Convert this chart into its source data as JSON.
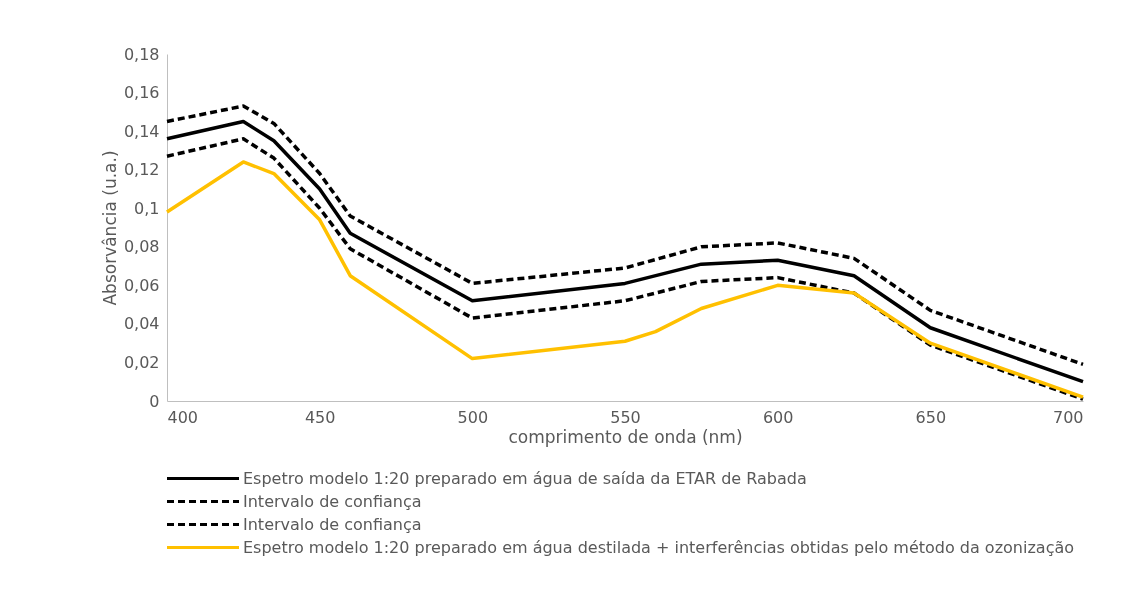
{
  "chart_data": {
    "type": "line",
    "xlabel": "comprimento de onda (nm)",
    "ylabel": "Absorvância (u.a.)",
    "xlim": [
      400,
      700
    ],
    "xticks": [
      400,
      450,
      500,
      550,
      600,
      650,
      700
    ],
    "ylim": [
      0,
      0.18
    ],
    "yticks": [
      {
        "value": 0,
        "label": "0"
      },
      {
        "value": 0.02,
        "label": "0,02"
      },
      {
        "value": 0.04,
        "label": "0,04"
      },
      {
        "value": 0.06,
        "label": "0,06"
      },
      {
        "value": 0.08,
        "label": "0,08"
      },
      {
        "value": 0.1,
        "label": "0,1"
      },
      {
        "value": 0.12,
        "label": "0,12"
      },
      {
        "value": 0.14,
        "label": "0,14"
      },
      {
        "value": 0.16,
        "label": "0,16"
      },
      {
        "value": 0.18,
        "label": "0,18"
      }
    ],
    "grid": false,
    "legend": "bottom",
    "x": [
      400,
      425,
      435,
      450,
      460,
      500,
      550,
      575,
      600,
      625,
      650,
      700
    ],
    "series": [
      {
        "name": "Espetro modelo 1:20 preparado em água de saída da ETAR de Rabada",
        "color": "#000000",
        "line_style": "solid",
        "values": [
          0.136,
          0.145,
          0.135,
          0.11,
          0.087,
          0.052,
          0.061,
          0.071,
          0.073,
          0.065,
          0.038,
          0.01
        ]
      },
      {
        "name": "Intervalo de confiança",
        "color": "#000000",
        "line_style": "dashed",
        "values": [
          0.145,
          0.153,
          0.144,
          0.118,
          0.096,
          0.061,
          0.069,
          0.08,
          0.082,
          0.074,
          0.047,
          0.019
        ]
      },
      {
        "name": "Intervalo de confiança",
        "color": "#000000",
        "line_style": "dashed",
        "values": [
          0.127,
          0.136,
          0.126,
          0.1,
          0.079,
          0.043,
          0.052,
          0.062,
          0.064,
          0.056,
          0.029,
          0.001
        ]
      },
      {
        "name": "Espetro modelo 1:20 preparado em água destilada + interferências obtidas pelo método da ozonização",
        "color": "#ffc000",
        "line_style": "solid",
        "x": [
          400,
          425,
          435,
          450,
          460,
          500,
          550,
          560,
          575,
          600,
          625,
          650,
          700
        ],
        "values": [
          0.098,
          0.124,
          0.118,
          0.094,
          0.065,
          0.022,
          0.031,
          0.036,
          0.048,
          0.06,
          0.056,
          0.03,
          0.002
        ]
      }
    ]
  }
}
